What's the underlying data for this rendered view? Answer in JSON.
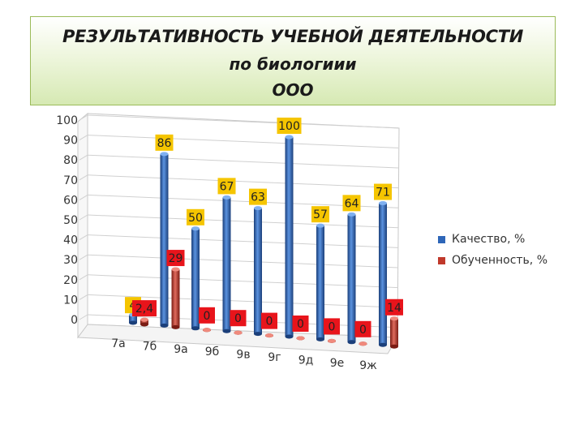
{
  "title": {
    "line1": "РЕЗУЛЬТАТИВНОСТЬ УЧЕБНОЙ ДЕЯТЕЛЬНОСТИ",
    "line2": "по биологиии",
    "line3": "ООО"
  },
  "chart_data": {
    "type": "bar",
    "categories": [
      "7а",
      "7б",
      "9а",
      "9б",
      "9в",
      "9г",
      "9д",
      "9е",
      "9ж"
    ],
    "series": [
      {
        "name": "Качество, %",
        "color": "#2e66b8",
        "values": [
          4,
          86,
          50,
          67,
          63,
          100,
          57,
          64,
          71
        ]
      },
      {
        "name": "Обученность, %",
        "color": "#c0392b",
        "values": [
          2.4,
          29,
          0,
          0,
          0,
          0,
          0,
          0,
          14
        ]
      }
    ],
    "data_labels": {
      "Качество, %": [
        "4",
        "86",
        "50",
        "67",
        "63",
        "100",
        "57",
        "64",
        "71"
      ],
      "Обученность, %": [
        "2,4",
        "29",
        "0",
        "0",
        "0",
        "0",
        "0",
        "0",
        "14"
      ]
    },
    "yticks": [
      "0",
      "10",
      "20",
      "30",
      "40",
      "50",
      "60",
      "70",
      "80",
      "90",
      "100"
    ],
    "ylim": [
      0,
      100
    ],
    "grid": true,
    "legend": "right",
    "label_colors": {
      "Качество, %": "#f5c500",
      "Обученность, %": "#e8141b"
    }
  }
}
